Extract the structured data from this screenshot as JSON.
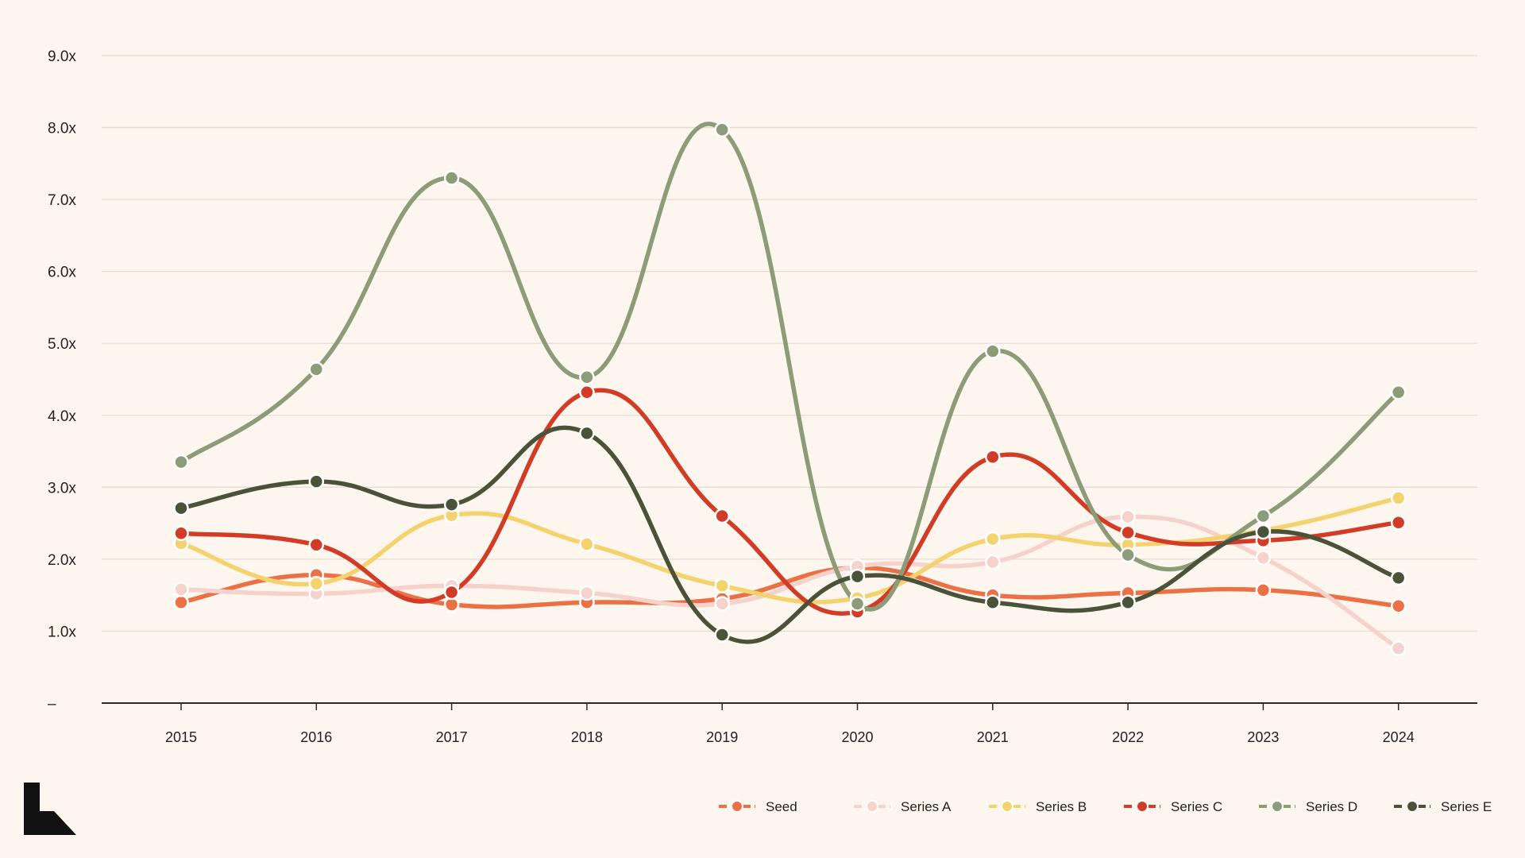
{
  "chart_data": {
    "type": "line",
    "categories": [
      "2015",
      "2016",
      "2017",
      "2018",
      "2019",
      "2020",
      "2021",
      "2022",
      "2023",
      "2024"
    ],
    "y_tick_labels": [
      "–",
      "1.0x",
      "2.0x",
      "3.0x",
      "4.0x",
      "5.0x",
      "6.0x",
      "7.0x",
      "8.0x",
      "9.0x"
    ],
    "ylim": [
      0,
      9
    ],
    "grid": true,
    "legend_position": "bottom-right",
    "series": [
      {
        "name": "Seed",
        "color": "#EC7045",
        "values": [
          1.4,
          1.78,
          1.37,
          1.4,
          1.45,
          1.88,
          1.5,
          1.53,
          1.57,
          1.35
        ]
      },
      {
        "name": "Series A",
        "color": "#F5D2CC",
        "values": [
          1.58,
          1.52,
          1.63,
          1.53,
          1.38,
          1.9,
          1.96,
          2.59,
          2.02,
          0.76
        ]
      },
      {
        "name": "Series B",
        "color": "#F4D36F",
        "values": [
          2.22,
          1.66,
          2.61,
          2.21,
          1.63,
          1.46,
          2.28,
          2.2,
          2.4,
          2.85
        ]
      },
      {
        "name": "Series C",
        "color": "#D23C27",
        "values": [
          2.36,
          2.2,
          1.54,
          4.32,
          2.6,
          1.27,
          3.42,
          2.37,
          2.26,
          2.51
        ]
      },
      {
        "name": "Series D",
        "color": "#8C9C78",
        "values": [
          3.35,
          4.64,
          7.3,
          4.53,
          7.97,
          1.38,
          4.89,
          2.06,
          2.6,
          4.32
        ]
      },
      {
        "name": "Series E",
        "color": "#4A5239",
        "values": [
          2.71,
          3.08,
          2.76,
          3.75,
          0.95,
          1.76,
          1.4,
          1.4,
          2.38,
          1.74
        ]
      }
    ]
  },
  "logo": {
    "name": "brand-logo",
    "color": "#111111"
  }
}
